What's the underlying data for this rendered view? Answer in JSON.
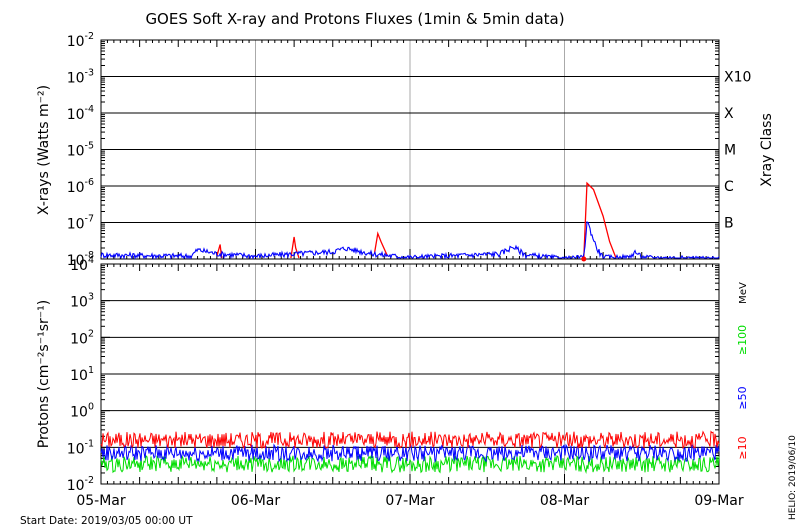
{
  "chart_data": [
    {
      "type": "line",
      "title": "GOES Soft X-ray and Protons Fluxes   (1min & 5min data)",
      "ylabel": "X-rays (Watts m⁻²)",
      "yscale": "log",
      "ylim": [
        1e-08,
        0.01
      ],
      "y_ticks": [
        {
          "base": "10",
          "exp": "-2"
        },
        {
          "base": "10",
          "exp": "-3"
        },
        {
          "base": "10",
          "exp": "-4"
        },
        {
          "base": "10",
          "exp": "-5"
        },
        {
          "base": "10",
          "exp": "-6"
        },
        {
          "base": "10",
          "exp": "-7"
        },
        {
          "base": "10",
          "exp": "-8"
        }
      ],
      "right_axis_label": "Xray Class",
      "class_labels": [
        "X10",
        "X",
        "M",
        "C",
        "B"
      ],
      "x_days": [
        "05-Mar",
        "06-Mar",
        "07-Mar",
        "08-Mar",
        "09-Mar"
      ],
      "grid": true,
      "series": [
        {
          "color": "#ff0000",
          "points": [
            [
              "2019-03-05 18:00",
              1.2e-08
            ],
            [
              "2019-03-05 18:30",
              2.5e-08
            ],
            [
              "2019-03-05 18:45",
              1e-08
            ],
            [
              "2019-03-06 05:30",
              1e-08
            ],
            [
              "2019-03-06 06:00",
              4e-08
            ],
            [
              "2019-03-06 06:15",
              2e-08
            ],
            [
              "2019-03-06 06:45",
              1e-08
            ],
            [
              "2019-03-06 18:30",
              1.5e-08
            ],
            [
              "2019-03-06 19:00",
              5e-08
            ],
            [
              "2019-03-06 19:30",
              3e-08
            ],
            [
              "2019-03-06 20:30",
              1.2e-08
            ],
            [
              "2019-03-08 03:00",
              1e-08
            ],
            [
              "2019-03-08 03:30",
              1.2e-06
            ],
            [
              "2019-03-08 04:30",
              8e-07
            ],
            [
              "2019-03-08 06:00",
              1.5e-07
            ],
            [
              "2019-03-08 07:00",
              3e-08
            ],
            [
              "2019-03-08 08:00",
              1e-08
            ]
          ]
        },
        {
          "color": "#0000ff",
          "points": [
            [
              "2019-03-05 00:00",
              1.3e-08
            ],
            [
              "2019-03-05 14:00",
              1.2e-08
            ],
            [
              "2019-03-05 15:00",
              1.8e-08
            ],
            [
              "2019-03-05 18:00",
              1.4e-08
            ],
            [
              "2019-03-06 00:00",
              1.2e-08
            ],
            [
              "2019-03-06 12:00",
              1.6e-08
            ],
            [
              "2019-03-06 14:00",
              2e-08
            ],
            [
              "2019-03-06 18:00",
              1.4e-08
            ],
            [
              "2019-03-07 00:00",
              1.1e-08
            ],
            [
              "2019-03-07 14:00",
              1.4e-08
            ],
            [
              "2019-03-07 16:00",
              2.2e-08
            ],
            [
              "2019-03-07 18:00",
              1.3e-08
            ],
            [
              "2019-03-08 00:00",
              1e-08
            ],
            [
              "2019-03-08 03:00",
              1.1e-08
            ],
            [
              "2019-03-08 03:30",
              1.1e-07
            ],
            [
              "2019-03-08 05:00",
              2e-08
            ],
            [
              "2019-03-08 06:00",
              1.1e-08
            ],
            [
              "2019-03-08 10:00",
              1.1e-08
            ],
            [
              "2019-03-08 11:00",
              1.6e-08
            ],
            [
              "2019-03-08 12:00",
              1.1e-08
            ],
            [
              "2019-03-09 00:00",
              1e-08
            ]
          ]
        }
      ]
    },
    {
      "type": "line",
      "ylabel": "Protons (cm⁻²s⁻¹sr⁻¹)",
      "yscale": "log",
      "ylim": [
        0.01,
        10000
      ],
      "y_ticks": [
        {
          "base": "10",
          "exp": "4"
        },
        {
          "base": "10",
          "exp": "3"
        },
        {
          "base": "10",
          "exp": "2"
        },
        {
          "base": "10",
          "exp": "1"
        },
        {
          "base": "10",
          "exp": "0"
        },
        {
          "base": "10",
          "exp": "-1"
        },
        {
          "base": "10",
          "exp": "-2"
        }
      ],
      "threshold_line": 10,
      "x_days": [
        "05-Mar",
        "06-Mar",
        "07-Mar",
        "08-Mar",
        "09-Mar"
      ],
      "grid": true,
      "unit_label": "MeV",
      "series": [
        {
          "name": "≥10",
          "color": "#ff0000",
          "level": 0.16
        },
        {
          "name": "≥50",
          "color": "#0000ff",
          "level": 0.07
        },
        {
          "name": "≥100",
          "color": "#00dd00",
          "level": 0.035
        }
      ]
    }
  ],
  "footer": {
    "start_date": "Start Date: 2019/03/05 00:00 UT",
    "stamp": "HELIO: 2019/06/10"
  }
}
